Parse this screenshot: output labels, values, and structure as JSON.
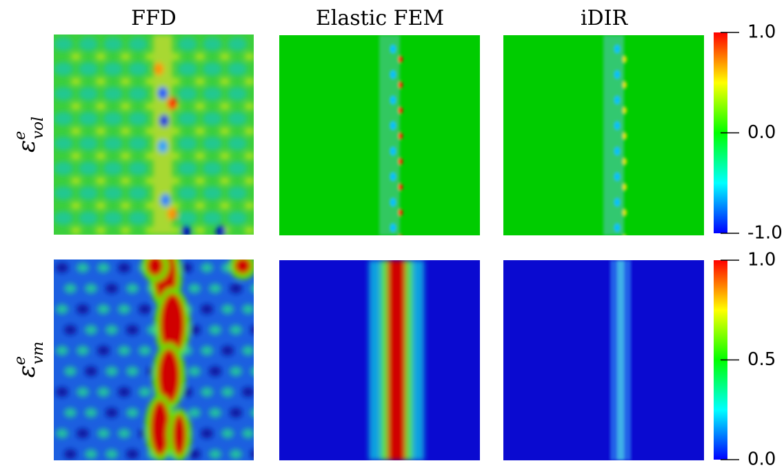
{
  "columns": [
    "FFD",
    "Elastic FEM",
    "iDIR"
  ],
  "rows": [
    {
      "symbol": "ε",
      "superscript": "e",
      "subscript": "vol"
    },
    {
      "symbol": "ε",
      "superscript": "e",
      "subscript": "vm"
    }
  ],
  "colorbars": [
    {
      "lim": [
        -1,
        1
      ],
      "ticks": [
        {
          "value": -1,
          "label": "-1.0"
        },
        {
          "value": 0,
          "label": "0.0"
        },
        {
          "value": 1,
          "label": "1.0"
        }
      ]
    },
    {
      "lim": [
        0,
        1
      ],
      "ticks": [
        {
          "value": 0,
          "label": "0.0"
        },
        {
          "value": 0.5,
          "label": "0.5"
        },
        {
          "value": 1,
          "label": "1.0"
        }
      ]
    }
  ]
}
